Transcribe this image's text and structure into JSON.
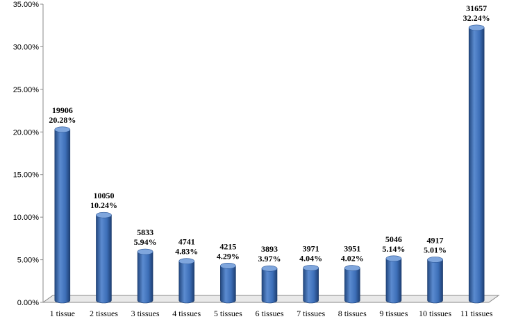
{
  "chart_data": {
    "type": "bar",
    "style": "3d-cylinder",
    "title": "",
    "xlabel": "",
    "ylabel": "",
    "ylim": [
      0,
      35
    ],
    "y_tick_labels": [
      "0.00%",
      "5.00%",
      "10.00%",
      "15.00%",
      "20.00%",
      "25.00%",
      "30.00%",
      "35.00%"
    ],
    "y_tick_values": [
      0,
      5,
      10,
      15,
      20,
      25,
      30,
      35
    ],
    "grid": false,
    "legend": "none",
    "categories": [
      "1 tissue",
      "2 tissues",
      "3 tissues",
      "4 tissues",
      "5 tissues",
      "6 tissues",
      "7 tissues",
      "8 tissues",
      "9 tissues",
      "10 tissues",
      "11 tissues"
    ],
    "values": [
      20.28,
      10.24,
      5.94,
      4.83,
      4.29,
      3.97,
      4.04,
      4.02,
      5.14,
      5.01,
      32.24
    ],
    "counts": [
      19906,
      10050,
      5833,
      4741,
      4215,
      3893,
      3971,
      3951,
      5046,
      4917,
      31657
    ],
    "value_labels": [
      "20.28%",
      "10.24%",
      "5.94%",
      "4.83%",
      "4.29%",
      "3.97%",
      "4.04%",
      "4.02%",
      "5.14%",
      "5.01%",
      "32.24%"
    ],
    "count_labels": [
      "19906",
      "10050",
      "5833",
      "4741",
      "4215",
      "3893",
      "3971",
      "3951",
      "5046",
      "4917",
      "31657"
    ],
    "colors": {
      "bar_light": "#5b8bd0",
      "bar_mid": "#3d6fb8",
      "bar_dark": "#22477f",
      "bar_top": "#7fa6dd",
      "axis": "#888888",
      "floor": "#e9e9e9"
    }
  }
}
